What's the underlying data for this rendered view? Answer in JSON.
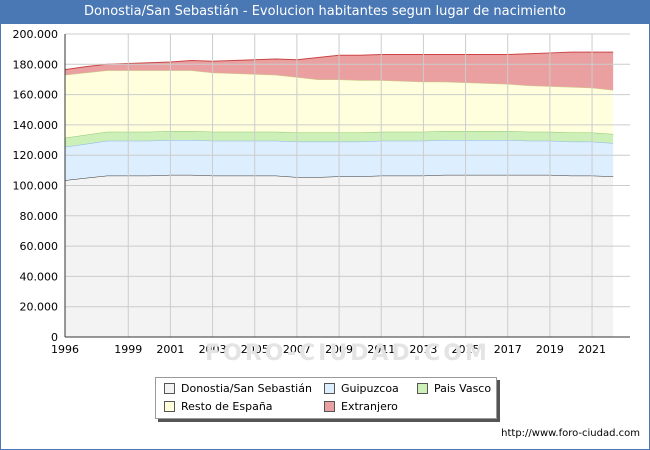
{
  "title": "Donostia/San Sebastián - Evolucion habitantes segun lugar de nacimiento",
  "source_url": "http://www.foro-ciudad.com",
  "watermark": "FORO-CIUDAD.COM",
  "colors": {
    "title_bar": "#4a78b5",
    "grid": "#cccccc",
    "axis": "#333333"
  },
  "chart_data": {
    "type": "area",
    "stacked": true,
    "x": [
      1996,
      1997,
      1998,
      1999,
      2000,
      2001,
      2002,
      2003,
      2004,
      2005,
      2006,
      2007,
      2008,
      2009,
      2010,
      2011,
      2012,
      2013,
      2014,
      2015,
      2016,
      2017,
      2018,
      2019,
      2020,
      2021,
      2022
    ],
    "x_ticks": [
      "1996",
      "1999",
      "2001",
      "2003",
      "2005",
      "2007",
      "2009",
      "2011",
      "2013",
      "2015",
      "2017",
      "2019",
      "2021"
    ],
    "y_ticks": [
      "0",
      "20.000",
      "40.000",
      "60.000",
      "80.000",
      "100.000",
      "120.000",
      "140.000",
      "160.000",
      "180.000",
      "200.000"
    ],
    "ylim": [
      0,
      200000
    ],
    "grid": true,
    "legend_position": "bottom",
    "series": [
      {
        "name": "Donostia/San Sebastián",
        "color": "#f3f3f3",
        "line": "#333333",
        "values": [
          103500,
          105000,
          106500,
          106500,
          106500,
          107000,
          107000,
          106500,
          106500,
          106500,
          106500,
          105500,
          105500,
          106000,
          106000,
          106500,
          106500,
          106500,
          107000,
          107000,
          107000,
          107000,
          107000,
          107000,
          106500,
          106500,
          106000
        ]
      },
      {
        "name": "Guipuzcoa",
        "color": "#ddeeff",
        "line": "#8ab4e8",
        "values": [
          22000,
          22500,
          23000,
          23000,
          23000,
          23000,
          23000,
          23000,
          23000,
          23000,
          23000,
          23500,
          23500,
          23000,
          23000,
          23000,
          23000,
          23000,
          23000,
          23000,
          23000,
          23000,
          22500,
          22500,
          22500,
          22500,
          22000
        ]
      },
      {
        "name": "Pais Vasco",
        "color": "#cdf0b8",
        "line": "#8cc870",
        "values": [
          6000,
          6000,
          6000,
          6000,
          6000,
          6000,
          6000,
          6000,
          6000,
          6000,
          6000,
          6000,
          6000,
          6000,
          6000,
          6000,
          6000,
          6000,
          6000,
          6000,
          6000,
          6000,
          6000,
          6000,
          6000,
          6000,
          6000
        ]
      },
      {
        "name": "Resto de España",
        "color": "#ffffdd",
        "line": "#cccc88",
        "values": [
          41500,
          41000,
          40500,
          40500,
          40500,
          40000,
          40000,
          39000,
          38500,
          38000,
          37500,
          36500,
          35000,
          35000,
          34500,
          34000,
          33500,
          33000,
          32500,
          32000,
          31500,
          31000,
          30500,
          30000,
          30000,
          29500,
          29000
        ]
      },
      {
        "name": "Extranjero",
        "color": "#eaa0a0",
        "line": "#cc4444",
        "values": [
          3500,
          4000,
          4000,
          4500,
          5000,
          5500,
          6500,
          7500,
          8500,
          9500,
          10500,
          11500,
          14500,
          16000,
          16500,
          17000,
          17500,
          18000,
          18000,
          18500,
          19000,
          19500,
          21000,
          22000,
          23000,
          23500,
          25000
        ]
      }
    ]
  }
}
